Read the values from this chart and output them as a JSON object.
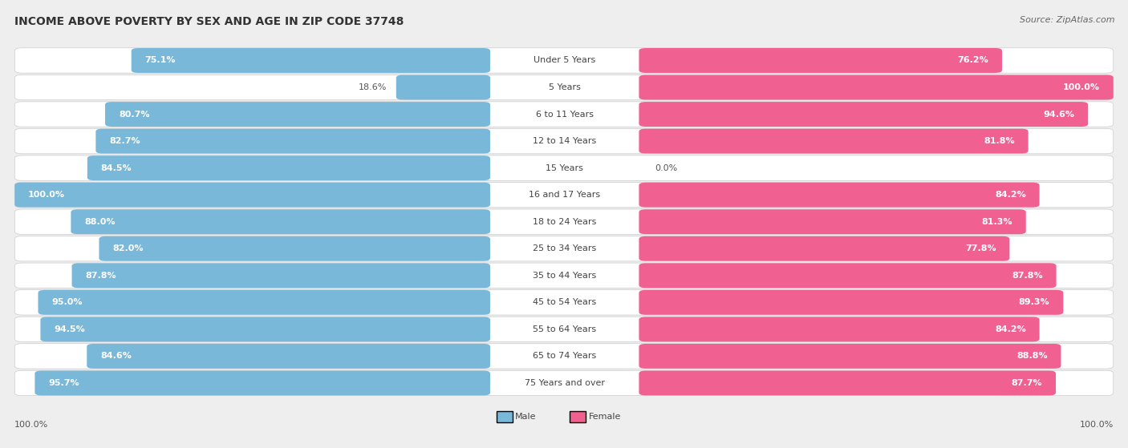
{
  "title": "INCOME ABOVE POVERTY BY SEX AND AGE IN ZIP CODE 37748",
  "source": "Source: ZipAtlas.com",
  "categories": [
    "Under 5 Years",
    "5 Years",
    "6 to 11 Years",
    "12 to 14 Years",
    "15 Years",
    "16 and 17 Years",
    "18 to 24 Years",
    "25 to 34 Years",
    "35 to 44 Years",
    "45 to 54 Years",
    "55 to 64 Years",
    "65 to 74 Years",
    "75 Years and over"
  ],
  "male_values": [
    75.1,
    18.6,
    80.7,
    82.7,
    84.5,
    100.0,
    88.0,
    82.0,
    87.8,
    95.0,
    94.5,
    84.6,
    95.7
  ],
  "female_values": [
    76.2,
    100.0,
    94.6,
    81.8,
    0.0,
    84.2,
    81.3,
    77.8,
    87.8,
    89.3,
    84.2,
    88.8,
    87.7
  ],
  "male_color": "#7ab8d9",
  "female_color": "#f06090",
  "background_color": "#eeeeee",
  "row_bg_color": "#ffffff",
  "title_fontsize": 10,
  "label_fontsize": 8,
  "cat_fontsize": 8,
  "source_fontsize": 8
}
